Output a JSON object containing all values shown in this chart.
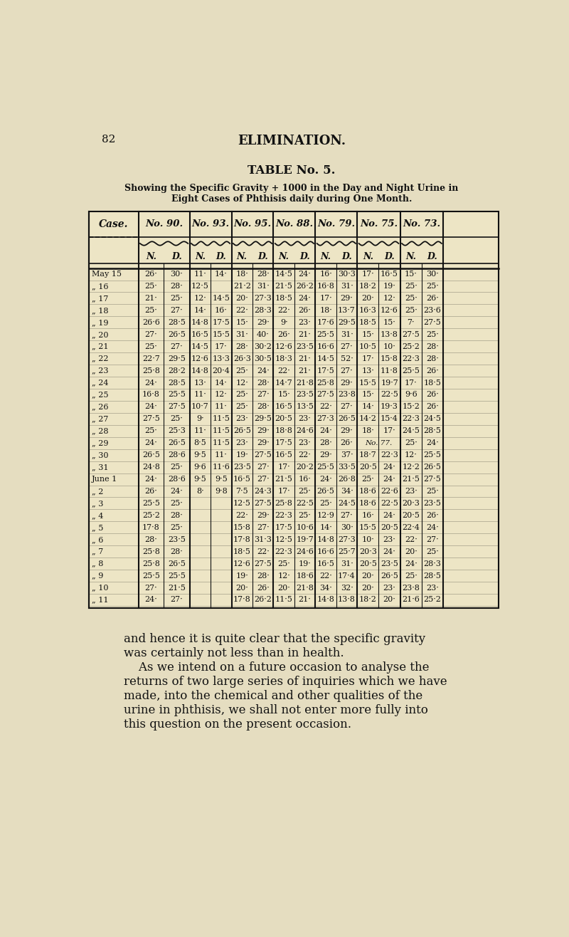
{
  "page_num": "82",
  "header": "ELIMINATION.",
  "table_title": "TABLE No. 5.",
  "subtitle1": "Showing the Specific Gravity + 1000 in the Day and Night Urine in",
  "subtitle2": "Eight Cases of Phthisis daily during One Month.",
  "cases": [
    "No. 90.",
    "No. 93.",
    "No. 95.",
    "No. 88.",
    "No. 79.",
    "No. 75.",
    "No. 73."
  ],
  "col_headers": [
    "N.",
    "D.",
    "N.",
    "D.",
    "N.",
    "D.",
    "N.",
    "D.",
    "N.",
    "D.",
    "N.",
    "D.",
    "N.",
    "D."
  ],
  "rows": [
    [
      "May 15",
      "26·",
      "30·",
      "11·",
      "14·",
      "18·",
      "28·",
      "14·5",
      "24·",
      "16·",
      "30·3",
      "17·",
      "16·5",
      "15·",
      "30·"
    ],
    [
      "„ 16",
      "25·",
      "28·",
      "12·5",
      "",
      "21·2",
      "31·",
      "21·5",
      "26·2",
      "16·8",
      "31·",
      "18·2",
      "19·",
      "25·",
      "25·"
    ],
    [
      "„ 17",
      "21·",
      "25·",
      "12·",
      "14·5",
      "20·",
      "27·3",
      "18·5",
      "24·",
      "17·",
      "29·",
      "20·",
      "12·",
      "25·",
      "26·"
    ],
    [
      "„ 18",
      "25·",
      "27·",
      "14·",
      "16·",
      "22·",
      "28·3",
      "22·",
      "26·",
      "18·",
      "13·7",
      "16·3",
      "12·6",
      "25·",
      "23·6"
    ],
    [
      "„ 19",
      "26·6",
      "28·5",
      "14·8",
      "17·5",
      "15·",
      "29·",
      "9·",
      "23·",
      "17·6",
      "29·5",
      "18·5",
      "15·",
      "7·",
      "27·5"
    ],
    [
      "„ 20",
      "27·",
      "26·5",
      "16·5",
      "15·5",
      "31·",
      "40·",
      "26·",
      "21·",
      "25·5",
      "31·",
      "15·",
      "13·8",
      "27·5",
      "25·"
    ],
    [
      "„ 21",
      "25·",
      "27·",
      "14·5",
      "17·",
      "28·",
      "30·2",
      "12·6",
      "23·5",
      "16·6",
      "27·",
      "10·5",
      "10·",
      "25·2",
      "28·"
    ],
    [
      "„ 22",
      "22·7",
      "29·5",
      "12·6",
      "13·3",
      "26·3",
      "30·5",
      "18·3",
      "21·",
      "14·5",
      "52·",
      "17·",
      "15·8",
      "22·3",
      "28·"
    ],
    [
      "„ 23",
      "25·8",
      "28·2",
      "14·8",
      "20·4",
      "25·",
      "24·",
      "22·",
      "21·",
      "17·5",
      "27·",
      "13·",
      "11·8",
      "25·5",
      "26·"
    ],
    [
      "„ 24",
      "24·",
      "28·5",
      "13·",
      "14·",
      "12·",
      "28·",
      "14·7",
      "21·8",
      "25·8",
      "29·",
      "15·5",
      "19·7",
      "17·",
      "18·5"
    ],
    [
      "„ 25",
      "16·8",
      "25·5",
      "11·",
      "12·",
      "25·",
      "27·",
      "15·",
      "23·5",
      "27·5",
      "23·8",
      "15·",
      "22·5",
      "9·6",
      "26·"
    ],
    [
      "„ 26",
      "24·",
      "27·5",
      "10·7",
      "11·",
      "25·",
      "28·",
      "16·5",
      "13·5",
      "22·",
      "27·",
      "14·",
      "19·3",
      "15·2",
      "26·"
    ],
    [
      "„ 27",
      "27·5",
      "25·",
      "9·",
      "11·5",
      "23·",
      "29·5",
      "20·5",
      "23·",
      "27·3",
      "26·5",
      "14·2",
      "15·4",
      "22·3",
      "24·5"
    ],
    [
      "„ 28",
      "25·",
      "25·3",
      "11·",
      "11·5",
      "26·5",
      "29·",
      "18·8",
      "24·6",
      "24·",
      "29·",
      "18·",
      "17·",
      "24·5",
      "28·5"
    ],
    [
      "„ 29",
      "24·",
      "26·5",
      "8·5",
      "11·5",
      "23·",
      "29·",
      "17·5",
      "23·",
      "28·",
      "26·",
      "No. 77.",
      "",
      "25·",
      "24·"
    ],
    [
      "„ 30",
      "26·5",
      "28·6",
      "9·5",
      "11·",
      "19·",
      "27·5",
      "16·5",
      "22·",
      "29·",
      "37·",
      "18·7",
      "22·3",
      "12·",
      "25·5"
    ],
    [
      "„ 31",
      "24·8",
      "25·",
      "9·6",
      "11·6",
      "23·5",
      "27·",
      "17·",
      "20·2",
      "25·5",
      "33·5",
      "20·5",
      "24·",
      "12·2",
      "26·5"
    ],
    [
      "June 1",
      "24·",
      "28·6",
      "9·5",
      "9·5",
      "16·5",
      "27·",
      "21·5",
      "16·",
      "24·",
      "26·8",
      "25·",
      "24·",
      "21·5",
      "27·5"
    ],
    [
      "„ 2",
      "26·",
      "24·",
      "8·",
      "9·8",
      "7·5",
      "24·3",
      "17·",
      "25·",
      "26·5",
      "34·",
      "18·6",
      "22·6",
      "23·",
      "25·"
    ],
    [
      "„ 3",
      "25·5",
      "25·",
      "",
      "",
      "12·5",
      "27·5",
      "25·8",
      "22·5",
      "25·",
      "24·5",
      "18·6",
      "22·5",
      "20·3",
      "23·5"
    ],
    [
      "„ 4",
      "25·2",
      "28·",
      "",
      "",
      "22·",
      "29·",
      "22·3",
      "25·",
      "12·9",
      "27·",
      "16·",
      "24·",
      "20·5",
      "26·"
    ],
    [
      "„ 5",
      "17·8",
      "25·",
      "",
      "",
      "15·8",
      "27·",
      "17·5",
      "10·6",
      "14·",
      "30·",
      "15·5",
      "20·5",
      "22·4",
      "24·"
    ],
    [
      "„ 6",
      "28·",
      "23·5",
      "",
      "",
      "17·8",
      "31·3",
      "12·5",
      "19·7",
      "14·8",
      "27·3",
      "10·",
      "23·",
      "22·",
      "27·"
    ],
    [
      "„ 7",
      "25·8",
      "28·",
      "",
      "",
      "18·5",
      "22·",
      "22·3",
      "24·6",
      "16·6",
      "25·7",
      "20·3",
      "24·",
      "20·",
      "25·"
    ],
    [
      "„ 8",
      "25·8",
      "26·5",
      "",
      "",
      "12·6",
      "27·5",
      "25·",
      "19·",
      "16·5",
      "31·",
      "20·5",
      "23·5",
      "24·",
      "28·3"
    ],
    [
      "„ 9",
      "25·5",
      "25·5",
      "",
      "",
      "19·",
      "28·",
      "12·",
      "18·6",
      "22·",
      "17·4",
      "20·",
      "26·5",
      "25·",
      "28·5"
    ],
    [
      "„ 10",
      "27·",
      "21·5",
      "",
      "",
      "20·",
      "26·",
      "20·",
      "21·8",
      "34·",
      "32·",
      "20·",
      "23·",
      "23·8",
      "23·"
    ],
    [
      "„ 11",
      "24·",
      "27·",
      "",
      "",
      "17·8",
      "26·2",
      "11·5",
      "21·",
      "14·8",
      "13·8",
      "18·2",
      "20·",
      "21·6",
      "25·2"
    ]
  ],
  "footer_lines": [
    [
      "and hence it is quite clear that the specific gravity"
    ],
    [
      "was certainly not less than in health."
    ],
    [
      "    As we intend on a future occasion to analyse the"
    ],
    [
      "returns of two large series of inquiries which we have"
    ],
    [
      "made, into the chemical and other qualities of the"
    ],
    [
      "urine in phthisis, we shall not enter more fully into"
    ],
    [
      "this question on the present occasion."
    ]
  ],
  "bg_color": "#e5ddc0",
  "text_color": "#111111",
  "table_bg": "#ede5c5"
}
